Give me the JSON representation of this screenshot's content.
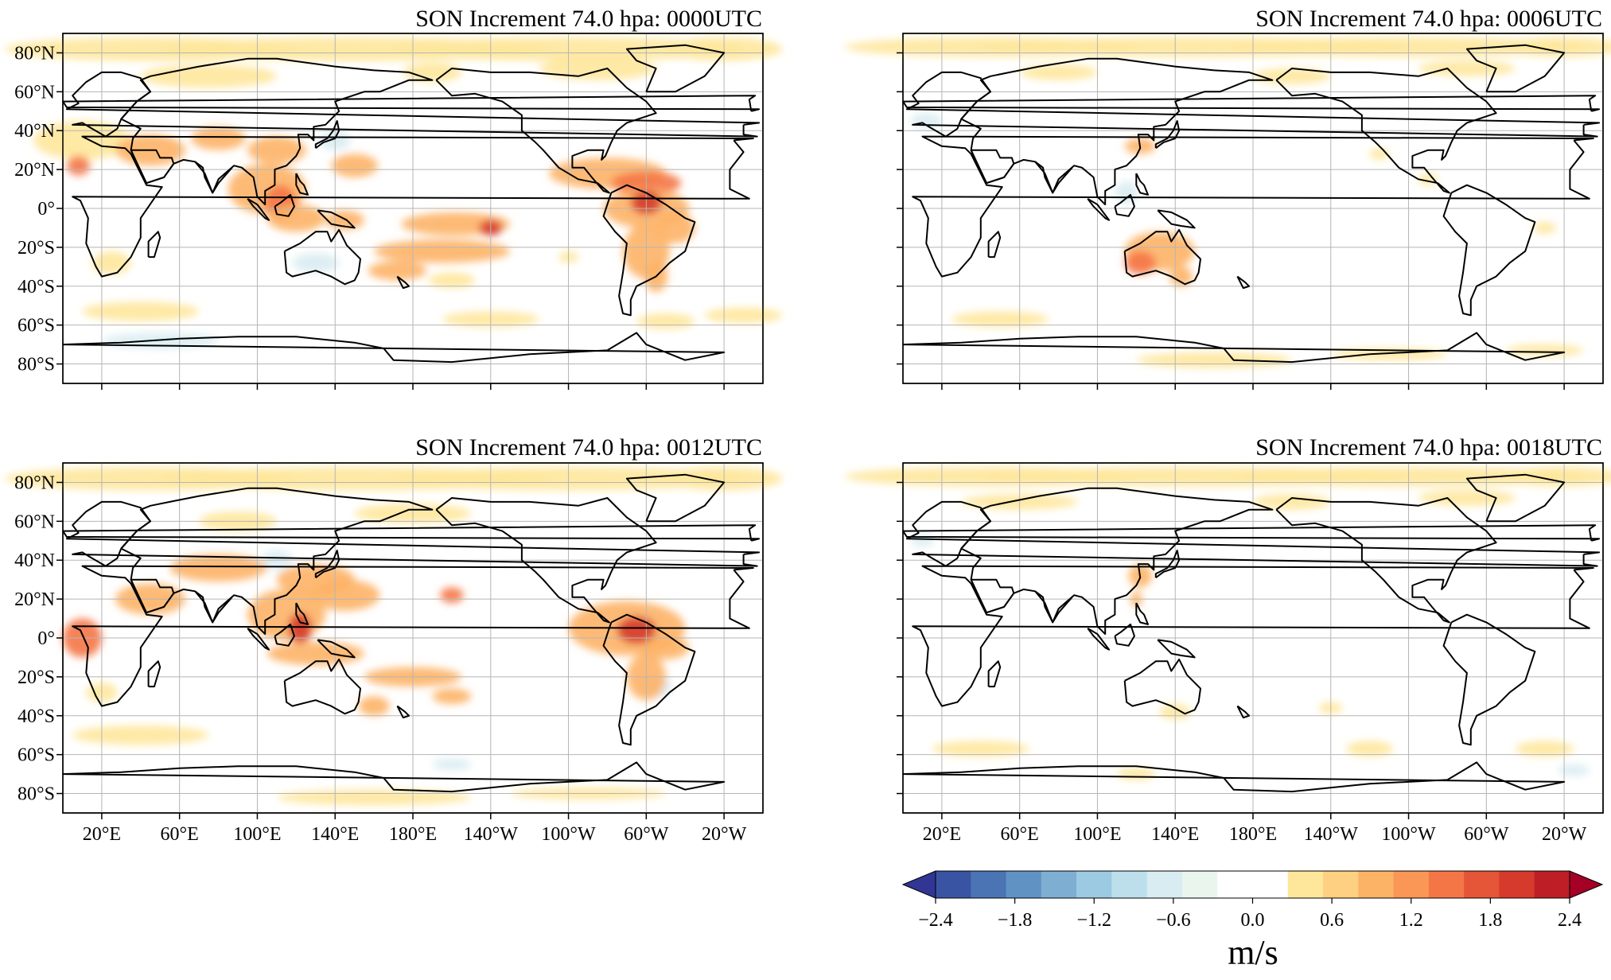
{
  "panels": [
    {
      "title": "SON Increment 74.0 hpa: 0000UTC",
      "variant": "a"
    },
    {
      "title": "SON Increment 74.0 hpa: 0006UTC",
      "variant": "b"
    },
    {
      "title": "SON Increment 74.0 hpa: 0012UTC",
      "variant": "c"
    },
    {
      "title": "SON Increment 74.0 hpa: 0018UTC",
      "variant": "d"
    }
  ],
  "lat_ticks": [
    "80°N",
    "60°N",
    "40°N",
    "20°N",
    "0°",
    "20°S",
    "40°S",
    "60°S",
    "80°S"
  ],
  "lon_ticks": [
    "20°E",
    "60°E",
    "100°E",
    "140°E",
    "180°E",
    "140°W",
    "100°W",
    "60°W",
    "20°W"
  ],
  "colorbar": {
    "ticks": [
      "−2.4",
      "−1.8",
      "−1.2",
      "−0.6",
      "0.0",
      "0.6",
      "1.2",
      "1.8",
      "2.4"
    ],
    "unit": "m/s",
    "colors": [
      "#313695",
      "#3a54a4",
      "#4a74b4",
      "#6092c4",
      "#7eafd3",
      "#9ccae2",
      "#bcdfeb",
      "#d9ecf2",
      "#eaf5ee",
      "#ffffff",
      "#ffffff",
      "#fee79b",
      "#fed081",
      "#fdb366",
      "#fa9656",
      "#f47646",
      "#e55537",
      "#d53a2d",
      "#be1f26",
      "#a50026"
    ]
  }
}
